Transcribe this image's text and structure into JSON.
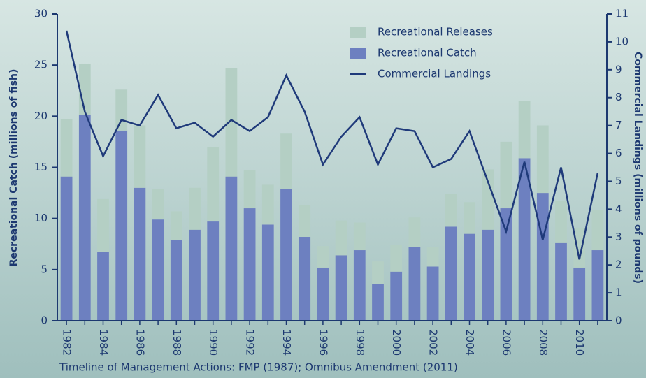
{
  "chart_data": {
    "type": "bar",
    "stacked": true,
    "y_label": "Recreational Catch (millions of fish)",
    "y2_label": "Commercial Landings (millions of pounds)",
    "footnote": "Timeline of Management Actions: FMP (1987); Omnibus Amendment (2011)",
    "categories": [
      "1982",
      null,
      "1984",
      null,
      "1986",
      null,
      "1988",
      null,
      "1990",
      null,
      "1992",
      null,
      "1994",
      null,
      "1996",
      null,
      "1998",
      null,
      "2000",
      null,
      "2002",
      null,
      "2004",
      null,
      "2006",
      null,
      "2008",
      null,
      "2010",
      null
    ],
    "series": [
      {
        "name": "Recreational Catch",
        "type": "bar",
        "color": "#6d80c0",
        "values": [
          14.1,
          20.1,
          6.7,
          18.6,
          13.0,
          9.9,
          7.9,
          8.9,
          9.7,
          14.1,
          11.0,
          9.4,
          12.9,
          8.2,
          5.2,
          6.4,
          6.9,
          3.6,
          4.8,
          7.2,
          5.3,
          9.2,
          8.5,
          8.9,
          11.0,
          15.9,
          12.5,
          7.6,
          5.2,
          6.9
        ]
      },
      {
        "name": "Recreational Releases",
        "type": "bar",
        "color": "#b4cfc4",
        "values": [
          5.6,
          5.0,
          5.2,
          4.0,
          6.1,
          3.0,
          2.8,
          4.1,
          7.3,
          10.6,
          3.7,
          3.9,
          5.4,
          3.1,
          2.1,
          3.4,
          2.7,
          2.2,
          2.6,
          2.9,
          1.9,
          3.2,
          3.1,
          5.9,
          6.5,
          5.6,
          6.6,
          4.1,
          3.9,
          3.9
        ]
      },
      {
        "name": "Commercial Landings",
        "type": "line",
        "axis": "y2",
        "color": "#1f3a7a",
        "values": [
          10.4,
          7.5,
          5.9,
          7.2,
          7.0,
          8.1,
          6.9,
          7.1,
          6.6,
          7.2,
          6.8,
          7.3,
          8.8,
          7.5,
          5.6,
          6.6,
          7.3,
          5.6,
          6.9,
          6.8,
          5.5,
          5.8,
          6.8,
          5.0,
          3.2,
          5.7,
          2.9,
          5.5,
          2.2,
          5.3
        ]
      }
    ],
    "legend_order": [
      1,
      0,
      2
    ],
    "legend": "upper right",
    "ylim": [
      0,
      30
    ],
    "yticks": [
      0,
      5,
      10,
      15,
      20,
      25,
      30
    ],
    "y2lim": [
      0,
      11
    ],
    "y2ticks": [
      0,
      1,
      2,
      3,
      4,
      5,
      6,
      7,
      8,
      9,
      10,
      11
    ]
  }
}
